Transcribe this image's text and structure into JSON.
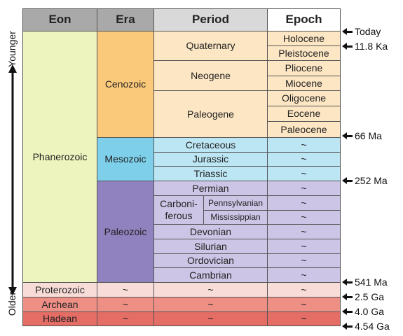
{
  "headers": {
    "eon": "Eon",
    "era": "Era",
    "period": "Period",
    "epoch": "Epoch"
  },
  "eons": {
    "phanerozoic": "Phanerozoic",
    "proterozoic": "Proterozoic",
    "archean": "Archean",
    "hadean": "Hadean"
  },
  "eras": {
    "cenozoic": "Cenozoic",
    "mesozoic": "Mesozoic",
    "paleozoic": "Paleozoic",
    "tilde": "~"
  },
  "periods": {
    "quaternary": "Quaternary",
    "neogene": "Neogene",
    "paleogene": "Paleogene",
    "cretaceous": "Cretaceous",
    "jurassic": "Jurassic",
    "triassic": "Triassic",
    "permian": "Permian",
    "carboniferous": "Carboni-\nferous",
    "pennsylvanian": "Pennsylvanian",
    "mississippian": "Mississippian",
    "devonian": "Devonian",
    "silurian": "Silurian",
    "ordovician": "Ordovician",
    "cambrian": "Cambrian",
    "tilde": "~"
  },
  "epochs": {
    "holocene": "Holocene",
    "pleistocene": "Pleistocene",
    "pliocene": "Pliocene",
    "miocene": "Miocene",
    "oligocene": "Oligocene",
    "eocene": "Eocene",
    "paleocene": "Paleocene",
    "tilde": "~"
  },
  "markers": {
    "today": "Today",
    "m11_8ka": "11.8 Ka",
    "m66ma": "66 Ma",
    "m252ma": "252 Ma",
    "m541ma": "541 Ma",
    "m2_5ga": "2.5 Ga",
    "m4_0ga": "4.0 Ga",
    "m4_54ga": "4.54 Ga"
  },
  "axis": {
    "younger": "Younger",
    "older": "Older"
  },
  "colors": {
    "header": "#a9a9a9",
    "header_light": "#d9d9d9",
    "phanerozoic": "#eef4be",
    "cenozoic_era": "#fbc97a",
    "cenozoic_light": "#fde6c3",
    "mesozoic_era": "#7dcfea",
    "mesozoic_light": "#bde6f4",
    "paleozoic_era": "#8f82bf",
    "paleozoic_light": "#cdc5e6",
    "proterozoic": "#f8dcd8",
    "archean": "#ee8f86",
    "hadean": "#e46d66"
  }
}
